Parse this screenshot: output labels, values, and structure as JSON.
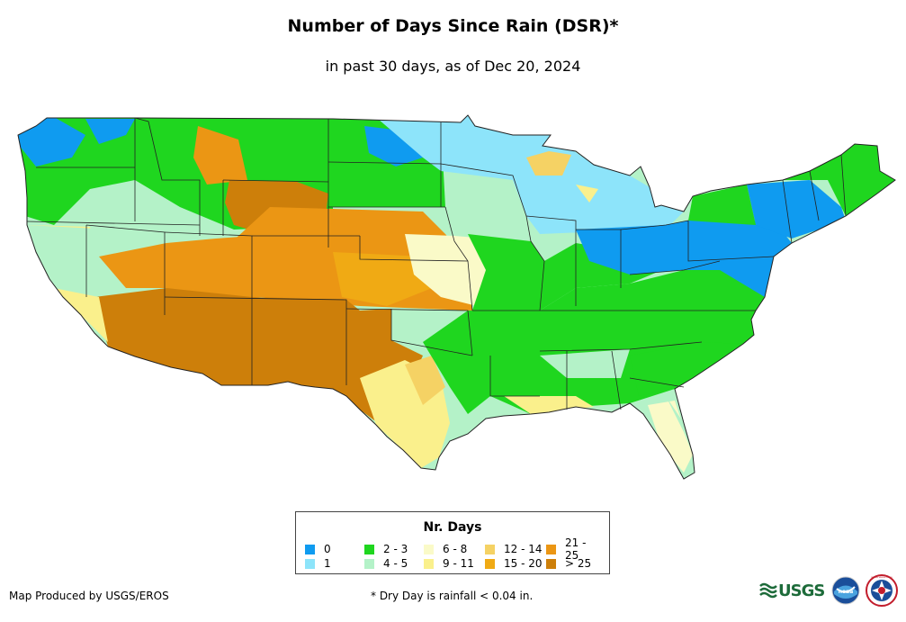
{
  "header": {
    "title": "Number of Days Since Rain (DSR)*",
    "subtitle": "in past 30 days, as of Dec 20, 2024"
  },
  "map": {
    "subject": "Contiguous United States precipitation recency",
    "regions": [
      {
        "name": "Pacific Northwest coast",
        "category": "0"
      },
      {
        "name": "Upper Midwest / Great Lakes",
        "category": "1"
      },
      {
        "name": "Northern Rockies & Plains",
        "category": "2 - 3"
      },
      {
        "name": "Montana / Wyoming high plains",
        "category": "21 - 25"
      },
      {
        "name": "Great Basin",
        "category": "4 - 5"
      },
      {
        "name": "Desert Southwest",
        "category": "> 25"
      },
      {
        "name": "Southern High Plains",
        "category": "> 25"
      },
      {
        "name": "Central Plains",
        "category": "15 - 20"
      },
      {
        "name": "Missouri / Iowa",
        "category": "6 - 8"
      },
      {
        "name": "Ohio & Tennessee Valleys",
        "category": "2 - 3"
      },
      {
        "name": "Mid-Atlantic & Ohio",
        "category": "0"
      },
      {
        "name": "New England",
        "category": "2 - 3"
      },
      {
        "name": "Southeast coast",
        "category": "2 - 3"
      },
      {
        "name": "South Texas",
        "category": "9 - 11"
      },
      {
        "name": "Florida",
        "category": "6 - 8"
      }
    ]
  },
  "legend": {
    "title": "Nr. Days",
    "items": [
      {
        "label": "0",
        "color": "#0f9bf0"
      },
      {
        "label": "1",
        "color": "#8de4fa"
      },
      {
        "label": "2 - 3",
        "color": "#1fd61f"
      },
      {
        "label": "4 - 5",
        "color": "#b4f2c8"
      },
      {
        "label": "6 - 8",
        "color": "#fafac8"
      },
      {
        "label": "9 - 11",
        "color": "#faf08c"
      },
      {
        "label": "12 - 14",
        "color": "#f5d264"
      },
      {
        "label": "15 - 20",
        "color": "#f0aa14"
      },
      {
        "label": "21 - 25",
        "color": "#eb9614"
      },
      {
        "label": "> 25",
        "color": "#cd7f0a"
      }
    ]
  },
  "footer": {
    "credit": "Map Produced by USGS/EROS",
    "note": "* Dry Day is rainfall < 0.04 in.",
    "logos": [
      "USGS",
      "noaa",
      "NATIONAL WEATHER SERVICE"
    ]
  },
  "colors": {
    "state_border": "#222222",
    "background": "#ffffff"
  }
}
